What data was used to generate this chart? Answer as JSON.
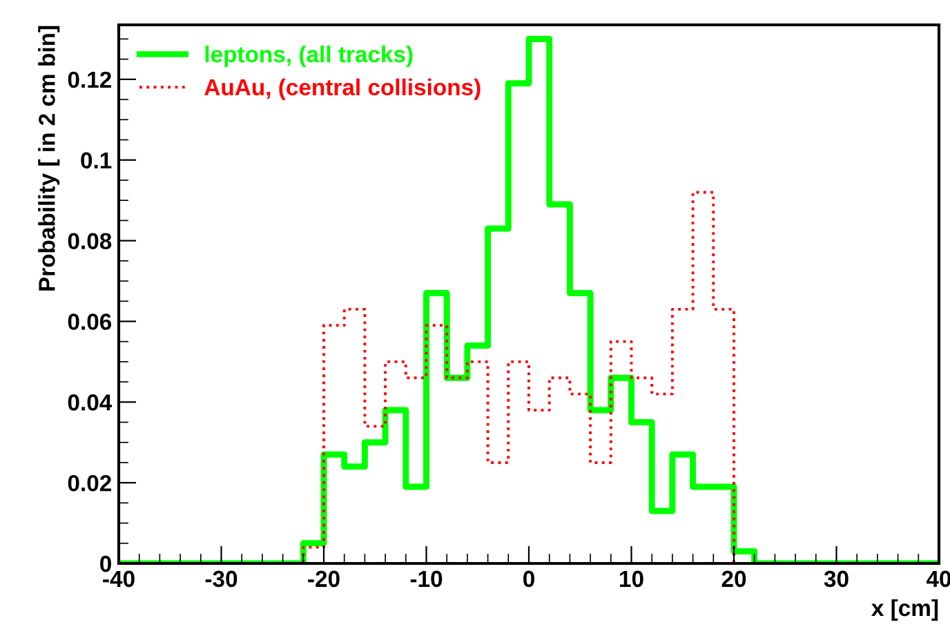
{
  "chart_data": {
    "type": "histogram",
    "xlabel": "x [cm]",
    "ylabel": "Probability [ in 2 cm bin]",
    "bins": [
      -40,
      -38,
      -36,
      -34,
      -32,
      -30,
      -28,
      -26,
      -24,
      -22,
      -20,
      -18,
      -16,
      -14,
      -12,
      -10,
      -8,
      -6,
      -4,
      -2,
      0,
      2,
      4,
      6,
      8,
      10,
      12,
      14,
      16,
      18,
      20,
      22,
      24,
      26,
      28,
      30,
      32,
      34,
      36,
      38,
      40
    ],
    "series": [
      {
        "name": "leptons, (all tracks)",
        "color": "#00ff00",
        "line_style": "solid",
        "values": [
          0,
          0,
          0,
          0,
          0,
          0,
          0,
          0,
          0,
          0.005,
          0.027,
          0.024,
          0.03,
          0.038,
          0.019,
          0.067,
          0.046,
          0.054,
          0.083,
          0.119,
          0.13,
          0.089,
          0.067,
          0.038,
          0.046,
          0.035,
          0.013,
          0.027,
          0.019,
          0.019,
          0.003,
          0,
          0,
          0,
          0,
          0,
          0,
          0,
          0,
          0
        ]
      },
      {
        "name": "AuAu, (central collisions)",
        "color": "#ff0000",
        "line_style": "dotted",
        "values": [
          0,
          0,
          0,
          0,
          0,
          0,
          0,
          0,
          0,
          0.004,
          0.059,
          0.063,
          0.034,
          0.05,
          0.046,
          0.059,
          0.046,
          0.05,
          0.025,
          0.05,
          0.038,
          0.046,
          0.042,
          0.025,
          0.055,
          0.046,
          0.042,
          0.063,
          0.092,
          0.063,
          0,
          0,
          0,
          0,
          0,
          0,
          0,
          0,
          0,
          0
        ]
      }
    ],
    "xlim": [
      -40,
      40
    ],
    "xticks": [
      -40,
      -30,
      -20,
      -10,
      0,
      10,
      20,
      30,
      40
    ],
    "ylim": [
      0,
      0.1335
    ],
    "yticks": [
      0,
      0.02,
      0.04,
      0.06,
      0.08,
      {
        "value": 0.1,
        "label": "0.1"
      },
      0.12
    ],
    "grid": false,
    "legend": "top left"
  }
}
